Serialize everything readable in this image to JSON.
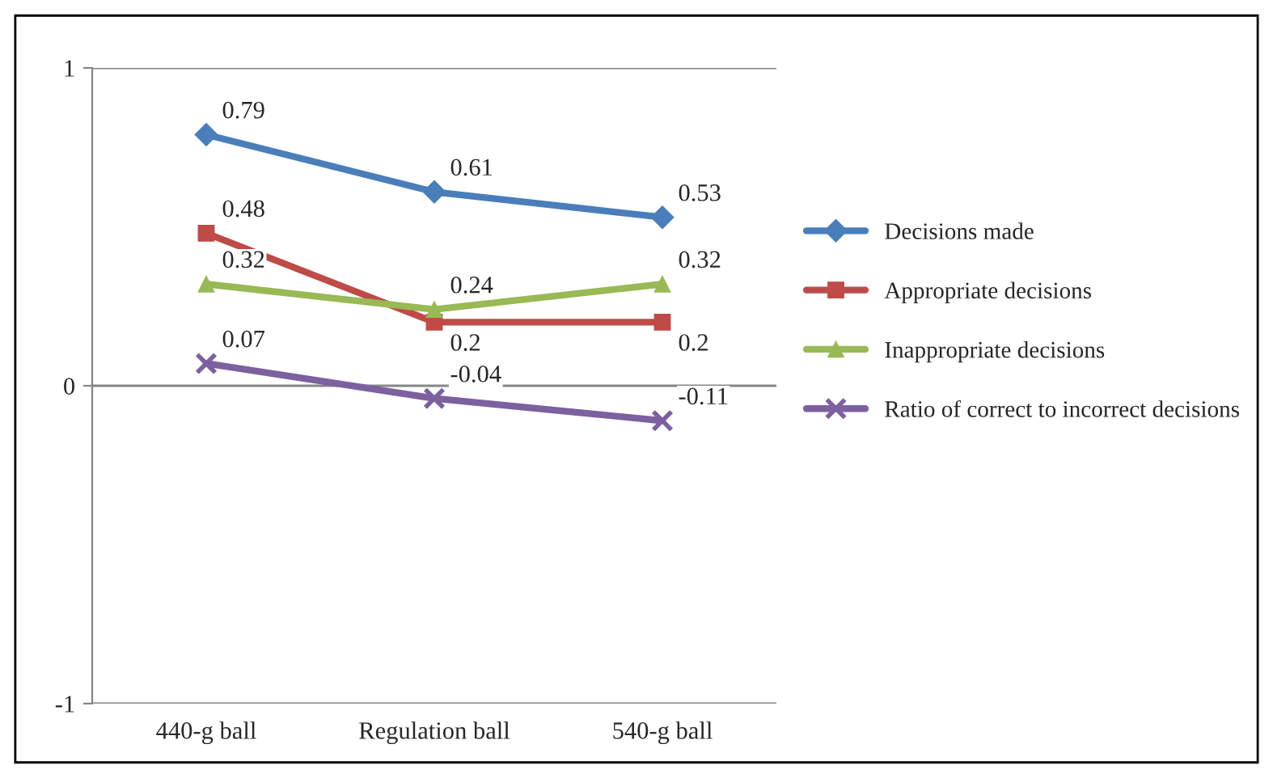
{
  "chart_data": {
    "type": "line",
    "categories": [
      "440-g ball",
      "Regulation ball",
      "540-g ball"
    ],
    "series": [
      {
        "name": "Decisions made",
        "color": "#4a7ebb",
        "marker": "diamond",
        "values": [
          0.79,
          0.61,
          0.53
        ]
      },
      {
        "name": "Appropriate decisions",
        "color": "#be4b48",
        "marker": "square",
        "values": [
          0.48,
          0.2,
          0.2
        ]
      },
      {
        "name": "Inappropriate decisions",
        "color": "#98b954",
        "marker": "triangle",
        "values": [
          0.32,
          0.24,
          0.32
        ]
      },
      {
        "name": "Ratio of correct to incorrect decisions",
        "color": "#7d60a0",
        "marker": "cross",
        "values": [
          0.07,
          -0.04,
          -0.11
        ]
      }
    ],
    "ylim": [
      -1,
      1
    ],
    "yticks": [
      -1,
      0,
      1
    ],
    "grid": "y",
    "legend": "right",
    "data_labels": true
  }
}
